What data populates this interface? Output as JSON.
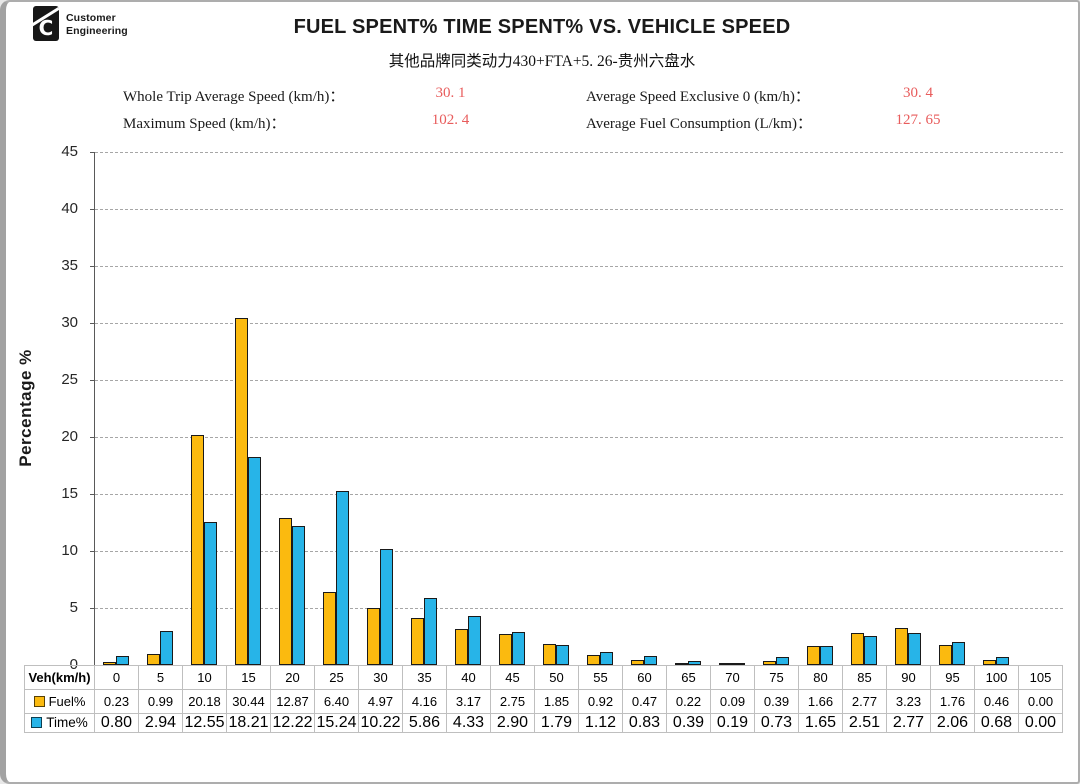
{
  "logo": {
    "line1": "Customer",
    "line2": "Engineering",
    "mark_letter": "C"
  },
  "stats": [
    {
      "label": "Whole Trip Average Speed (km/h)：",
      "value": "30. 1"
    },
    {
      "label": "Average Speed Exclusive 0 (km/h)：",
      "value": "30. 4"
    },
    {
      "label": "Maximum Speed (km/h)：",
      "value": "102. 4"
    },
    {
      "label": "Average Fuel Consumption (L/km)：",
      "value": "127. 65"
    }
  ],
  "colors": {
    "fuel_bar": "#fbba0f",
    "time_bar": "#27b4e8",
    "stat_value_red": "#e85c5c",
    "gridline": "#a6a6a6",
    "axis": "#595959",
    "table_border": "#bfbfbf"
  },
  "chart_data": {
    "type": "bar",
    "title": "FUEL SPENT% TIME SPENT% VS. VEHICLE SPEED",
    "subtitle": "其他品牌同类动力430+FTA+5. 26-贵州六盘水",
    "xlabel_header": "Veh(km/h)",
    "ylabel": "Percentage %",
    "ylim": [
      0,
      45
    ],
    "ytick_step": 5,
    "grid": "dashed-horizontal",
    "legend_position": "table-row-headers",
    "categories": [
      0,
      5,
      10,
      15,
      20,
      25,
      30,
      35,
      40,
      45,
      50,
      55,
      60,
      65,
      70,
      75,
      80,
      85,
      90,
      95,
      100,
      105
    ],
    "series": [
      {
        "name": "Fuel%",
        "color": "#fbba0f",
        "values": [
          0.23,
          0.99,
          20.18,
          30.44,
          12.87,
          6.4,
          4.97,
          4.16,
          3.17,
          2.75,
          1.85,
          0.92,
          0.47,
          0.22,
          0.09,
          0.39,
          1.66,
          2.77,
          3.23,
          1.76,
          0.46,
          0.0
        ]
      },
      {
        "name": "Time%",
        "color": "#27b4e8",
        "values": [
          0.8,
          2.94,
          12.55,
          18.21,
          12.22,
          15.24,
          10.22,
          5.86,
          4.33,
          2.9,
          1.79,
          1.12,
          0.83,
          0.39,
          0.19,
          0.73,
          1.65,
          2.51,
          2.77,
          2.06,
          0.68,
          0.0
        ]
      }
    ]
  }
}
